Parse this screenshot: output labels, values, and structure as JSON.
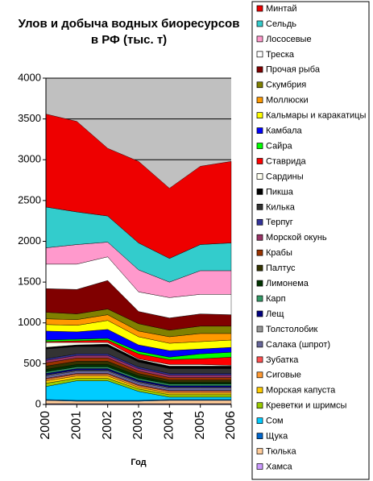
{
  "chart_data": {
    "type": "stacked_area",
    "title": [
      "Улов и добыча водных биоресурсов",
      "в РФ  (тыс. т)"
    ],
    "x_label": "Год",
    "x": [
      2000,
      2001,
      2002,
      2003,
      2004,
      2005,
      2006
    ],
    "xlim": [
      2000,
      2006
    ],
    "xticks": [
      2000,
      2001,
      2002,
      2003,
      2004,
      2005,
      2006
    ],
    "ylim": [
      0,
      4000
    ],
    "yticks": [
      0,
      500,
      1000,
      1500,
      2000,
      2500,
      3000,
      3500,
      4000
    ],
    "grid": true,
    "legend": "right",
    "series": [
      {
        "name": "Минтай",
        "color": "#ee0000",
        "values": [
          1140,
          1110,
          830,
          1000,
          860,
          960,
          1000
        ]
      },
      {
        "name": "Сельдь",
        "color": "#33cccc",
        "values": [
          500,
          400,
          320,
          330,
          290,
          320,
          340
        ]
      },
      {
        "name": "Лососевые",
        "color": "#ff99cc",
        "values": [
          200,
          240,
          180,
          270,
          190,
          290,
          290
        ]
      },
      {
        "name": "Треска",
        "color": "#ffffff",
        "values": [
          300,
          310,
          290,
          240,
          250,
          240,
          250
        ]
      },
      {
        "name": "Прочая рыба",
        "color": "#800000",
        "values": [
          290,
          300,
          350,
          150,
          150,
          150,
          140
        ]
      },
      {
        "name": "Скумбрия",
        "color": "#808000",
        "values": [
          80,
          70,
          70,
          90,
          80,
          90,
          90
        ]
      },
      {
        "name": "Моллюски",
        "color": "#ff9900",
        "values": [
          70,
          70,
          70,
          70,
          80,
          100,
          80
        ]
      },
      {
        "name": "Кальмары и каракатицы",
        "color": "#ffff00",
        "values": [
          80,
          80,
          110,
          100,
          90,
          90,
          90
        ]
      },
      {
        "name": "Камбала",
        "color": "#0000ff",
        "values": [
          110,
          90,
          110,
          80,
          80,
          60,
          60
        ]
      },
      {
        "name": "Сайра",
        "color": "#00ff00",
        "values": [
          20,
          20,
          20,
          30,
          30,
          60,
          60
        ]
      },
      {
        "name": "Ставрида",
        "color": "#ff0000",
        "values": [
          10,
          20,
          30,
          60,
          60,
          70,
          100
        ]
      },
      {
        "name": "Сардины",
        "color": "#fffff0",
        "values": [
          60,
          30,
          20,
          10,
          20,
          20,
          10
        ]
      },
      {
        "name": "Пикша",
        "color": "#000000",
        "values": [
          20,
          20,
          30,
          30,
          30,
          30,
          30
        ]
      },
      {
        "name": "Килька",
        "color": "#333333",
        "values": [
          120,
          90,
          90,
          60,
          60,
          60,
          60
        ]
      },
      {
        "name": "Терпуг",
        "color": "#333399",
        "values": [
          20,
          20,
          20,
          20,
          20,
          20,
          20
        ]
      },
      {
        "name": "Морской окунь",
        "color": "#993366",
        "values": [
          30,
          30,
          30,
          30,
          30,
          30,
          30
        ]
      },
      {
        "name": "Крабы",
        "color": "#993300",
        "values": [
          40,
          40,
          40,
          30,
          30,
          30,
          30
        ]
      },
      {
        "name": "Палтус",
        "color": "#333300",
        "values": [
          40,
          40,
          40,
          30,
          30,
          30,
          30
        ]
      },
      {
        "name": "Лимонема",
        "color": "#003300",
        "values": [
          30,
          30,
          30,
          30,
          20,
          20,
          20
        ]
      },
      {
        "name": "Карп",
        "color": "#339966",
        "values": [
          20,
          20,
          20,
          20,
          20,
          20,
          20
        ]
      },
      {
        "name": "Лещ",
        "color": "#000080",
        "values": [
          20,
          20,
          20,
          20,
          20,
          20,
          20
        ]
      },
      {
        "name": "Толстолобик",
        "color": "#969696",
        "values": [
          10,
          10,
          10,
          10,
          10,
          10,
          10
        ]
      },
      {
        "name": "Салака (шпрот)",
        "color": "#666699",
        "values": [
          30,
          30,
          30,
          30,
          30,
          30,
          30
        ]
      },
      {
        "name": "Зубатка",
        "color": "#ff5050",
        "values": [
          10,
          10,
          10,
          10,
          10,
          10,
          10
        ]
      },
      {
        "name": "Сиговые",
        "color": "#ff9933",
        "values": [
          20,
          20,
          20,
          20,
          20,
          20,
          20
        ]
      },
      {
        "name": "Морская капуста",
        "color": "#ffcc00",
        "values": [
          30,
          30,
          30,
          20,
          20,
          20,
          20
        ]
      },
      {
        "name": "Креветки и шримсы",
        "color": "#99cc00",
        "values": [
          40,
          30,
          30,
          30,
          30,
          30,
          30
        ]
      },
      {
        "name": "Сом",
        "color": "#00ccff",
        "values": [
          160,
          240,
          240,
          110,
          30,
          30,
          30
        ]
      },
      {
        "name": "Щука",
        "color": "#0066cc",
        "values": [
          10,
          10,
          10,
          10,
          10,
          10,
          10
        ]
      },
      {
        "name": "Тюлька",
        "color": "#ffcc99",
        "values": [
          40,
          30,
          30,
          30,
          40,
          40,
          40
        ]
      },
      {
        "name": "Хамса",
        "color": "#cc99ff",
        "values": [
          10,
          10,
          10,
          10,
          10,
          10,
          10
        ]
      }
    ]
  }
}
